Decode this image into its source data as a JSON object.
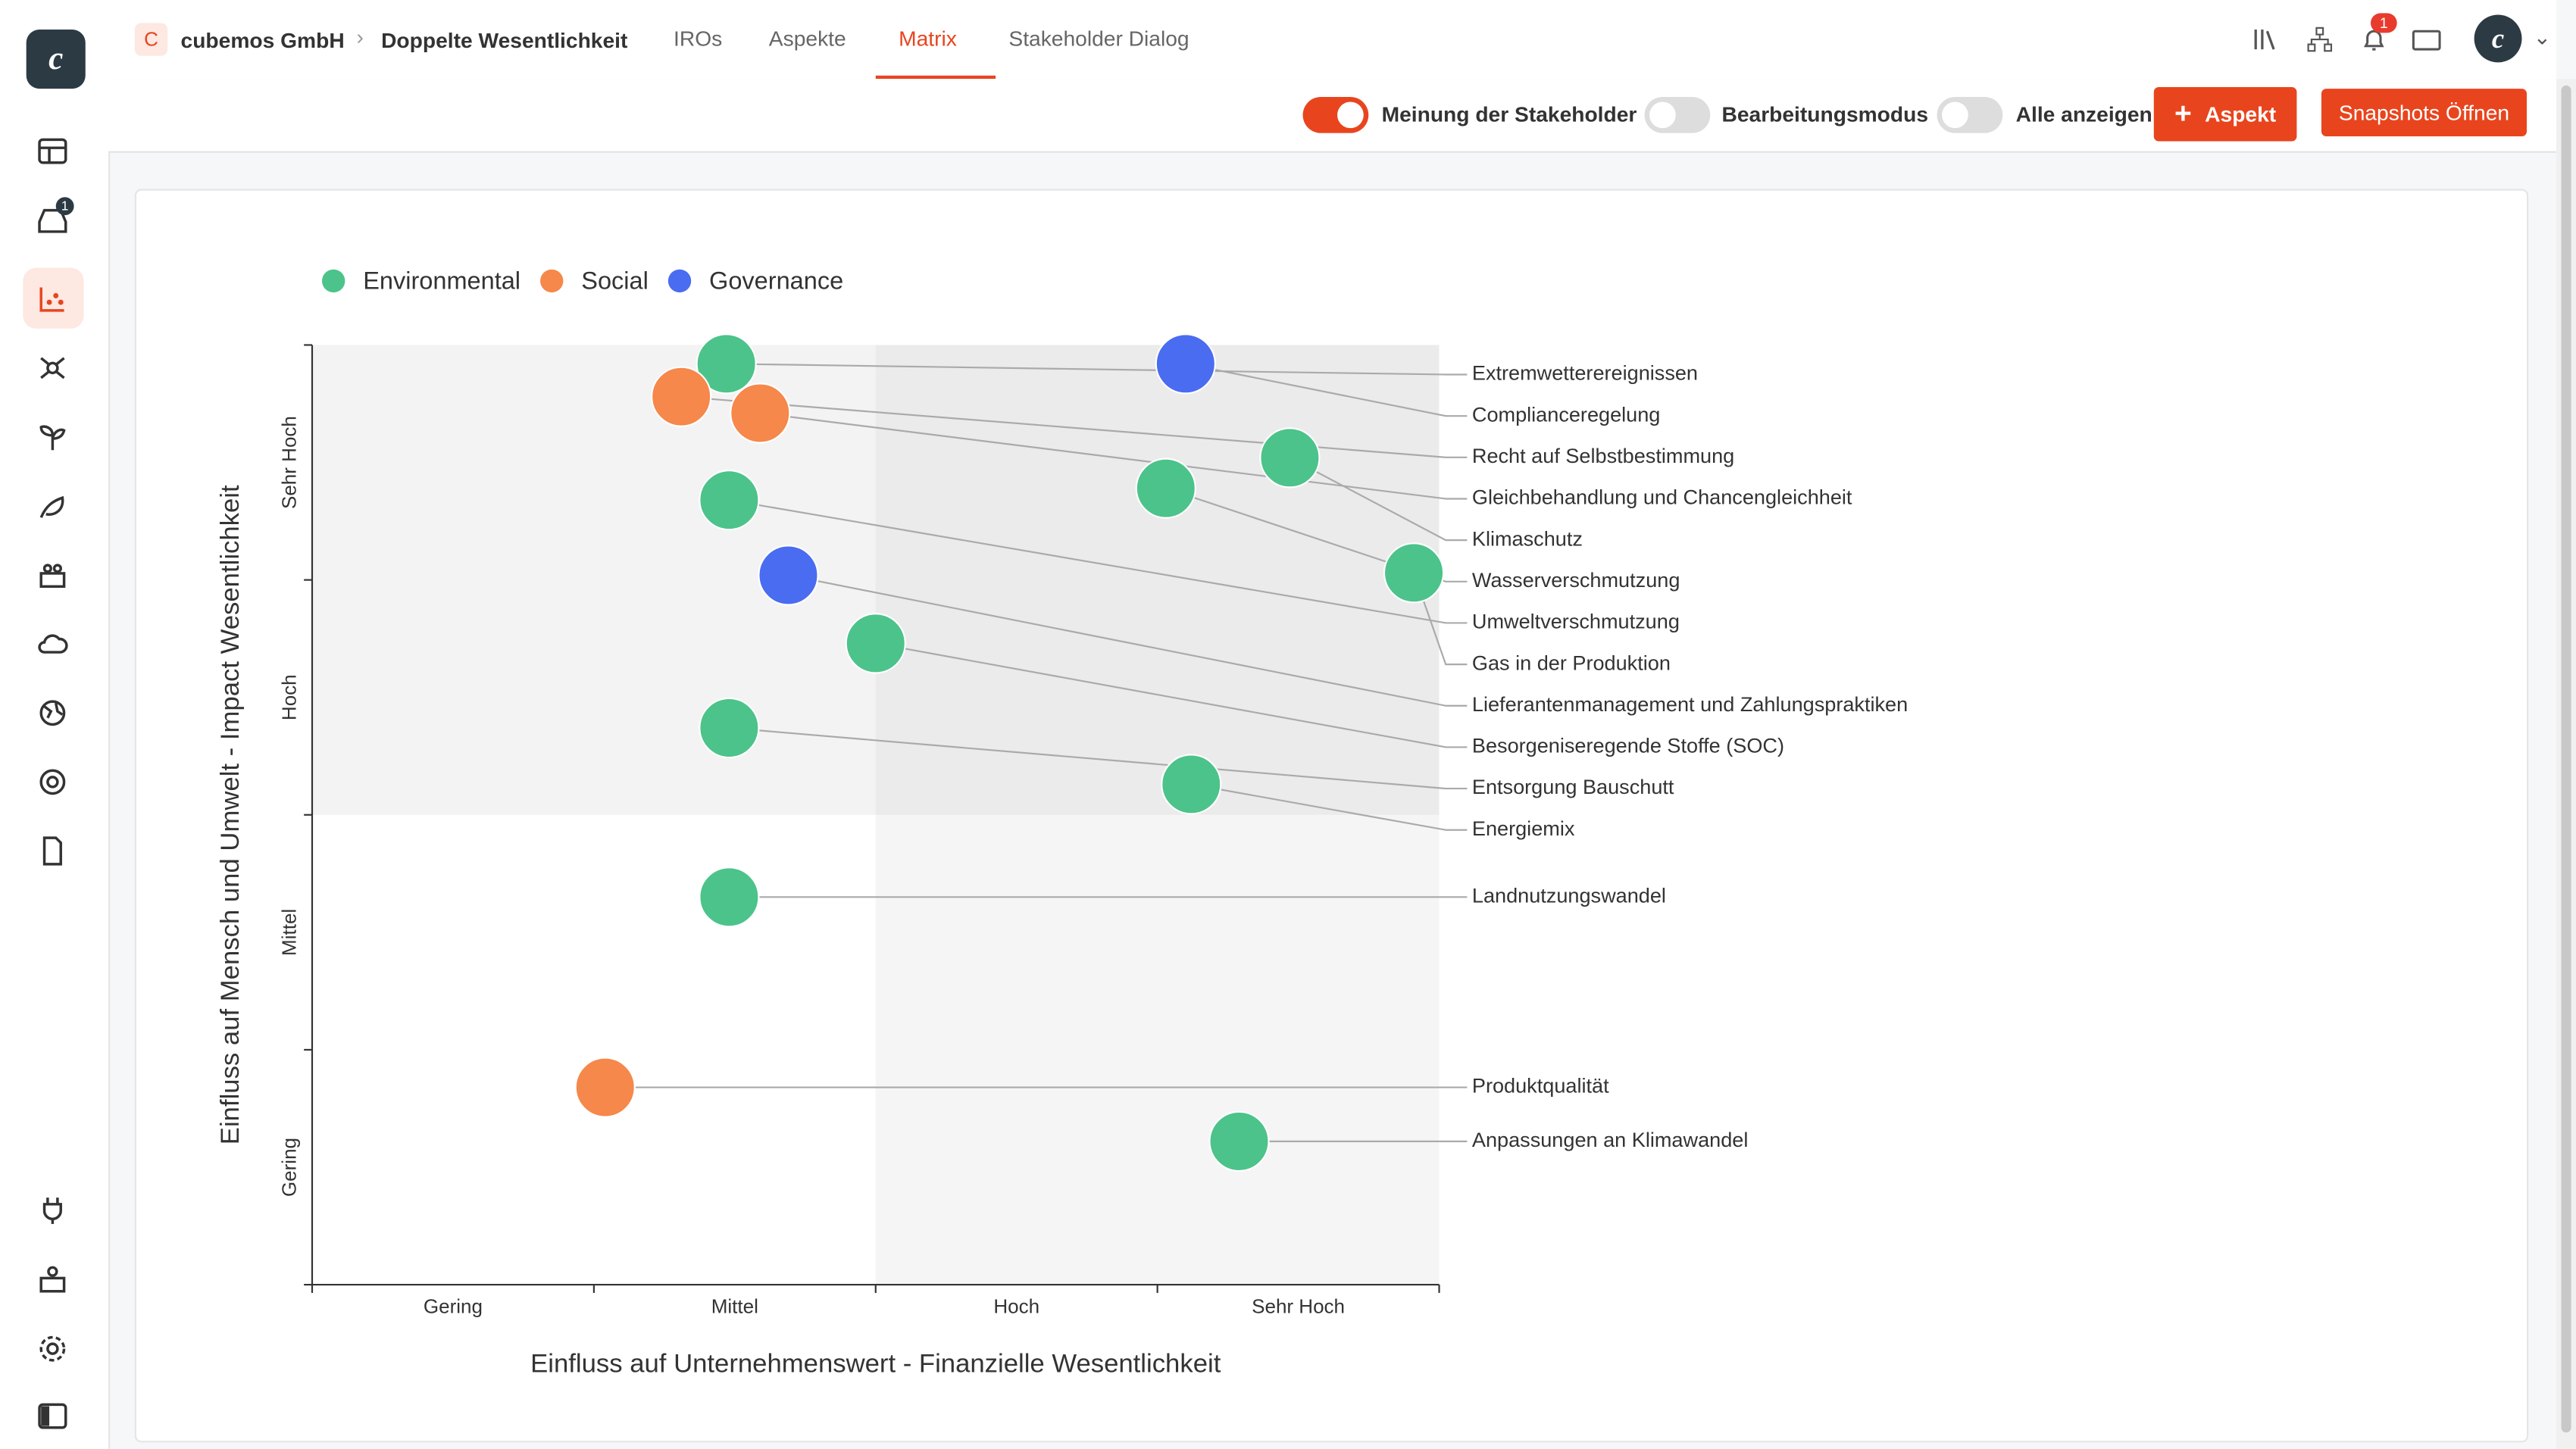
{
  "header": {
    "logo": "C",
    "company": "cubemos GmbH",
    "breadcrumb": "Doppelte Wesentlichkeit",
    "tabs": [
      "IROs",
      "Aspekte",
      "Matrix",
      "Stakeholder Dialog"
    ],
    "active_tab": "Matrix",
    "notifications": "1",
    "inbox_badge": "1"
  },
  "toolbar": {
    "toggles": [
      {
        "label": "Meinung der Stakeholder",
        "on": true
      },
      {
        "label": "Bearbeitungsmodus",
        "on": false
      },
      {
        "label": "Alle anzeigen",
        "on": false
      }
    ],
    "add_button": "Aspekt",
    "snapshot_button": "Snapshots Öffnen"
  },
  "chart_data": {
    "type": "bubble-matrix",
    "x_label": "Einfluss auf Unternehmenswert - Finanzielle Wesentlichkeit",
    "y_label": "Einfluss auf Mensch und Umwelt - Impact Wesentlichkeit",
    "x_categories": [
      "Gering",
      "Mittel",
      "Hoch",
      "Sehr Hoch"
    ],
    "y_categories": [
      "Gering",
      "Mittel",
      "Hoch",
      "Sehr Hoch"
    ],
    "xlim": [
      0,
      4
    ],
    "ylim": [
      0,
      4
    ],
    "xticks": [
      0,
      1,
      2,
      3,
      4
    ],
    "yticks": [
      0,
      1,
      2,
      3,
      4
    ],
    "series": [
      {
        "name": "Environmental",
        "color": "#4cc38a",
        "points": [
          {
            "label": "Extremwetterereignissen",
            "x": 1.47,
            "y": 3.92
          },
          {
            "label": "Klimaschutz",
            "x": 3.47,
            "y": 3.52
          },
          {
            "label": "Wasserverschmutzung",
            "x": 3.03,
            "y": 3.39
          },
          {
            "label": "Umweltverschmutzung",
            "x": 1.48,
            "y": 3.34
          },
          {
            "label": "Gas in der Produktion",
            "x": 3.91,
            "y": 3.03
          },
          {
            "label": "Besorgeniseregende Stoffe (SOC)",
            "x": 2.0,
            "y": 2.73
          },
          {
            "label": "Entsorgung Bauschutt",
            "x": 1.48,
            "y": 2.37
          },
          {
            "label": "Energiemix",
            "x": 3.12,
            "y": 2.13
          },
          {
            "label": "Landnutzungswandel",
            "x": 1.48,
            "y": 1.65
          },
          {
            "label": "Anpassungen an Klimawandel",
            "x": 3.29,
            "y": 0.61
          }
        ]
      },
      {
        "name": "Social",
        "color": "#f5884a",
        "points": [
          {
            "label": "Recht auf Selbstbestimmung",
            "x": 1.31,
            "y": 3.78
          },
          {
            "label": "Gleichbehandlung und Chancengleichheit",
            "x": 1.59,
            "y": 3.71
          },
          {
            "label": "Produktqualität",
            "x": 1.04,
            "y": 0.84
          }
        ]
      },
      {
        "name": "Governance",
        "color": "#4a6cf0",
        "points": [
          {
            "label": "Complianceregelung",
            "x": 3.1,
            "y": 3.92
          },
          {
            "label": "Lieferantenmanagement und Zahlungspraktiken",
            "x": 1.69,
            "y": 3.02
          }
        ]
      }
    ]
  }
}
